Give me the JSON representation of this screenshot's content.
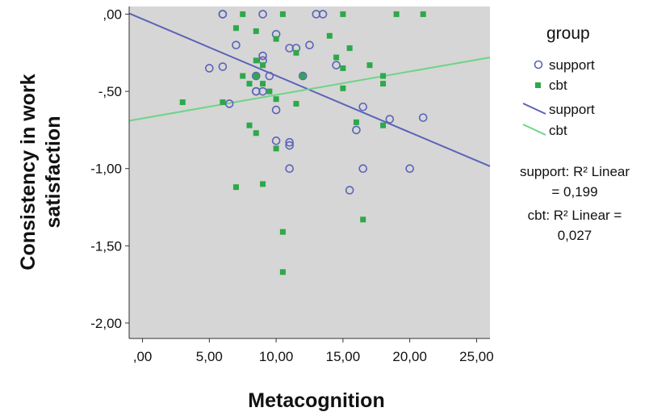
{
  "chart_data": {
    "type": "scatter",
    "xlabel": "Metacognition",
    "ylabel_lines": [
      "Consistency in work",
      "satisfaction"
    ],
    "xlim": [
      -1,
      26
    ],
    "ylim": [
      -2.1,
      0.05
    ],
    "xticks": [
      0,
      5,
      10,
      15,
      20,
      25
    ],
    "xtick_labels": [
      ",00",
      "5,00",
      "10,00",
      "15,00",
      "20,00",
      "25,00"
    ],
    "yticks": [
      0,
      -0.5,
      -1,
      -1.5,
      -2
    ],
    "ytick_labels": [
      ",00",
      "-,50",
      "-1,00",
      "-1,50",
      "-2,00"
    ],
    "plot_background": "#d6d6d6",
    "legend": {
      "title": "group",
      "placement": "right",
      "entries": [
        {
          "label": "support",
          "kind": "marker-open"
        },
        {
          "label": "cbt",
          "kind": "marker-filled"
        },
        {
          "label": "support",
          "kind": "line"
        },
        {
          "label": "cbt",
          "kind": "line"
        }
      ]
    },
    "annotations": [
      {
        "name": "support-r2",
        "lines": [
          "support: R² Linear",
          "= 0,199"
        ]
      },
      {
        "name": "cbt-r2",
        "lines": [
          "cbt: R² Linear =",
          "0,027"
        ]
      }
    ],
    "series": [
      {
        "name": "support",
        "marker": "open-circle",
        "color": "#5b63b8",
        "points": [
          [
            6,
            0
          ],
          [
            6,
            0
          ],
          [
            9,
            0
          ],
          [
            13,
            0
          ],
          [
            13.5,
            0
          ],
          [
            10,
            -0.13
          ],
          [
            7,
            -0.2
          ],
          [
            11,
            -0.22
          ],
          [
            11.5,
            -0.22
          ],
          [
            12.5,
            -0.2
          ],
          [
            9,
            -0.27
          ],
          [
            9,
            -0.3
          ],
          [
            5,
            -0.35
          ],
          [
            6,
            -0.34
          ],
          [
            8.5,
            -0.4
          ],
          [
            9.5,
            -0.4
          ],
          [
            14.5,
            -0.33
          ],
          [
            12,
            -0.4
          ],
          [
            8.5,
            -0.5
          ],
          [
            8.5,
            -0.5
          ],
          [
            9,
            -0.5
          ],
          [
            6.5,
            -0.58
          ],
          [
            10,
            -0.62
          ],
          [
            16.5,
            -0.6
          ],
          [
            16,
            -0.75
          ],
          [
            18.5,
            -0.68
          ],
          [
            21,
            -0.67
          ],
          [
            10,
            -0.82
          ],
          [
            11,
            -0.83
          ],
          [
            11,
            -0.85
          ],
          [
            11,
            -1
          ],
          [
            16.5,
            -1
          ],
          [
            20,
            -1
          ],
          [
            15.5,
            -1.14
          ]
        ]
      },
      {
        "name": "cbt",
        "marker": "filled-square",
        "color": "#2ea84a",
        "points": [
          [
            7.5,
            0
          ],
          [
            10.5,
            0
          ],
          [
            15,
            0
          ],
          [
            19,
            0
          ],
          [
            21,
            0
          ],
          [
            7,
            -0.09
          ],
          [
            8.5,
            -0.11
          ],
          [
            10,
            -0.16
          ],
          [
            14,
            -0.14
          ],
          [
            15.5,
            -0.22
          ],
          [
            11.5,
            -0.25
          ],
          [
            14.5,
            -0.28
          ],
          [
            8.5,
            -0.3
          ],
          [
            9,
            -0.33
          ],
          [
            17,
            -0.33
          ],
          [
            7.5,
            -0.4
          ],
          [
            8.5,
            -0.4
          ],
          [
            12,
            -0.4
          ],
          [
            18,
            -0.4
          ],
          [
            8,
            -0.45
          ],
          [
            9,
            -0.45
          ],
          [
            15,
            -0.35
          ],
          [
            18,
            -0.45
          ],
          [
            9.5,
            -0.5
          ],
          [
            15,
            -0.48
          ],
          [
            3,
            -0.57
          ],
          [
            10,
            -0.55
          ],
          [
            11.5,
            -0.58
          ],
          [
            6,
            -0.57
          ],
          [
            8,
            -0.72
          ],
          [
            8.5,
            -0.77
          ],
          [
            16,
            -0.7
          ],
          [
            18,
            -0.72
          ],
          [
            10,
            -0.87
          ],
          [
            7,
            -1.12
          ],
          [
            9,
            -1.1
          ],
          [
            16.5,
            -1.33
          ],
          [
            10.5,
            -1.41
          ],
          [
            10.5,
            -1.67
          ]
        ]
      }
    ],
    "fit_lines": [
      {
        "name": "support",
        "color": "#5b63b8",
        "x": [
          -1,
          26
        ],
        "y": [
          0.005,
          -0.985
        ]
      },
      {
        "name": "cbt",
        "color": "#6ed486",
        "x": [
          -1,
          26
        ],
        "y": [
          -0.69,
          -0.28
        ]
      }
    ]
  }
}
